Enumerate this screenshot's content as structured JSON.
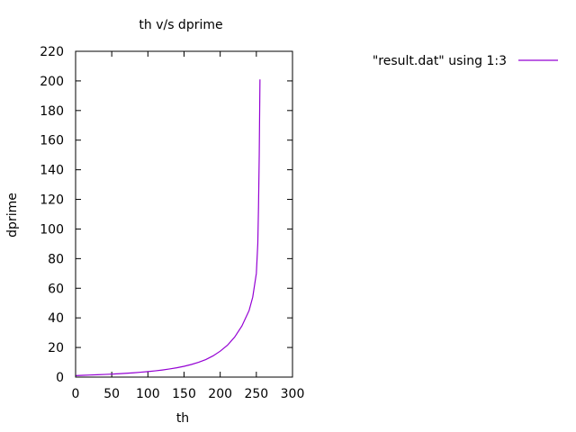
{
  "chart_data": {
    "type": "line",
    "title": "th v/s dprime",
    "xlabel": "th",
    "ylabel": "dprime",
    "xlim": [
      0,
      300
    ],
    "ylim": [
      0,
      220
    ],
    "xticks": [
      0,
      50,
      100,
      150,
      200,
      250,
      300
    ],
    "yticks": [
      0,
      20,
      40,
      60,
      80,
      100,
      120,
      140,
      160,
      180,
      200,
      220
    ],
    "grid": false,
    "legend_position": "top-right, outside plot",
    "series": [
      {
        "name": "\"result.dat\" using 1:3",
        "color": "#9400d3",
        "points": [
          [
            0,
            1.0
          ],
          [
            10,
            1.2
          ],
          [
            20,
            1.4
          ],
          [
            30,
            1.6
          ],
          [
            40,
            1.8
          ],
          [
            50,
            2.0
          ],
          [
            60,
            2.3
          ],
          [
            70,
            2.6
          ],
          [
            80,
            2.9
          ],
          [
            90,
            3.3
          ],
          [
            100,
            3.7
          ],
          [
            110,
            4.2
          ],
          [
            120,
            4.8
          ],
          [
            130,
            5.5
          ],
          [
            140,
            6.3
          ],
          [
            150,
            7.3
          ],
          [
            160,
            8.5
          ],
          [
            170,
            10.0
          ],
          [
            180,
            11.8
          ],
          [
            190,
            14.3
          ],
          [
            200,
            17.5
          ],
          [
            210,
            21.5
          ],
          [
            220,
            27.0
          ],
          [
            230,
            34.5
          ],
          [
            240,
            45.0
          ],
          [
            245,
            54.0
          ],
          [
            250,
            70.0
          ],
          [
            252,
            90.0
          ],
          [
            253,
            115.0
          ],
          [
            254,
            150.0
          ],
          [
            255,
            201.0
          ]
        ]
      }
    ]
  }
}
